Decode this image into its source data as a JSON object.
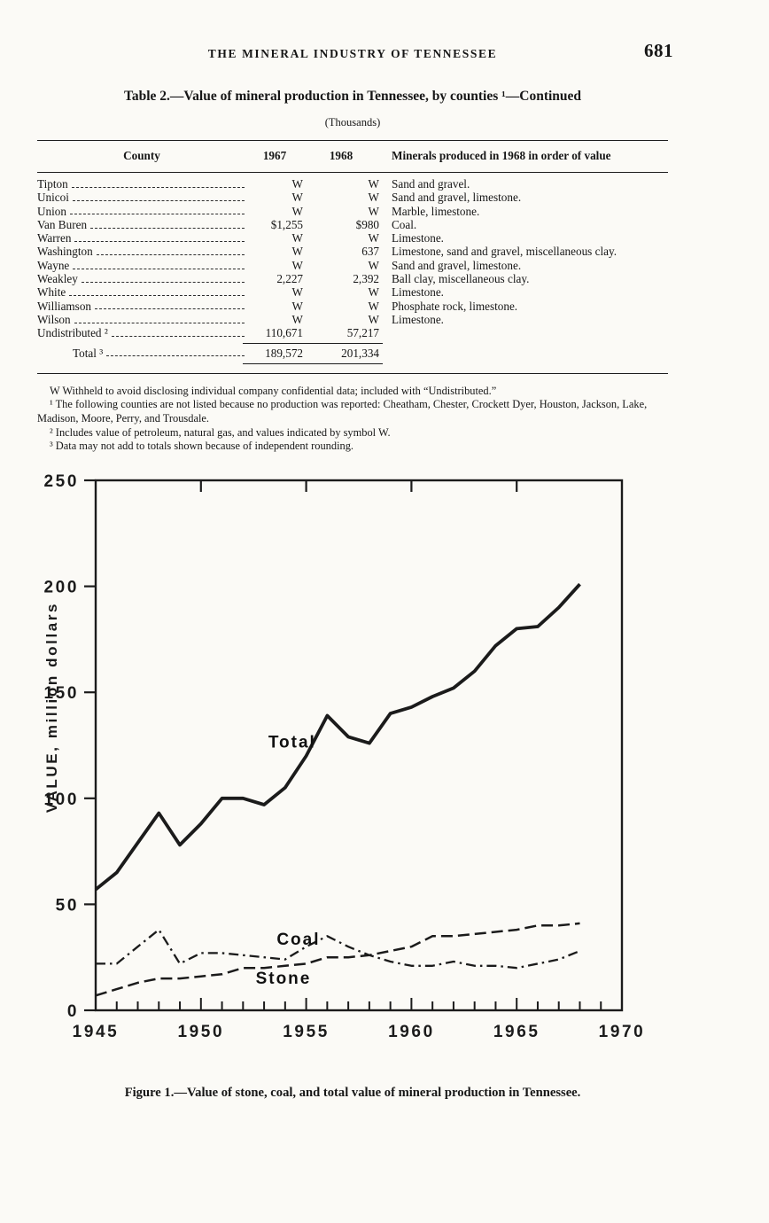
{
  "header": {
    "running_title": "THE MINERAL INDUSTRY OF TENNESSEE",
    "page_number": "681"
  },
  "table": {
    "title": "Table 2.—Value of mineral production in Tennessee, by counties ¹—Continued",
    "unit_note": "(Thousands)",
    "columns": [
      "County",
      "1967",
      "1968",
      "Minerals produced in 1968 in order of value"
    ],
    "rows": [
      {
        "county": "Tipton",
        "v1967": "W",
        "v1968": "W",
        "minerals": "Sand and gravel."
      },
      {
        "county": "Unicoi",
        "v1967": "W",
        "v1968": "W",
        "minerals": "Sand and gravel, limestone."
      },
      {
        "county": "Union",
        "v1967": "W",
        "v1968": "W",
        "minerals": "Marble, limestone."
      },
      {
        "county": "Van Buren",
        "v1967": "$1,255",
        "v1968": "$980",
        "minerals": "Coal."
      },
      {
        "county": "Warren",
        "v1967": "W",
        "v1968": "W",
        "minerals": "Limestone."
      },
      {
        "county": "Washington",
        "v1967": "W",
        "v1968": "637",
        "minerals": "Limestone, sand and gravel, miscellaneous clay."
      },
      {
        "county": "Wayne",
        "v1967": "W",
        "v1968": "W",
        "minerals": "Sand and gravel, limestone."
      },
      {
        "county": "Weakley",
        "v1967": "2,227",
        "v1968": "2,392",
        "minerals": "Ball clay, miscellaneous clay."
      },
      {
        "county": "White",
        "v1967": "W",
        "v1968": "W",
        "minerals": "Limestone."
      },
      {
        "county": "Williamson",
        "v1967": "W",
        "v1968": "W",
        "minerals": "Phosphate rock, limestone."
      },
      {
        "county": "Wilson",
        "v1967": "W",
        "v1968": "W",
        "minerals": "Limestone."
      }
    ],
    "undistributed_row": {
      "county": "Undistributed ²",
      "v1967": "110,671",
      "v1968": "57,217"
    },
    "total_row": {
      "county": "Total ³",
      "v1967": "189,572",
      "v1968": "201,334"
    }
  },
  "footnotes": [
    "W Withheld to avoid disclosing individual company confidential data; included with “Undistributed.”",
    "¹ The following counties are not listed because no production was reported: Cheatham, Chester, Crockett Dyer, Houston, Jackson, Lake, Madison, Moore, Perry, and Trousdale.",
    "² Includes value of petroleum, natural gas, and values indicated by symbol W.",
    "³ Data may not add to totals shown because of independent rounding."
  ],
  "chart_data": {
    "type": "line",
    "title": "",
    "xlabel": "",
    "ylabel": "VALUE, million dollars",
    "xlim": [
      1945,
      1970
    ],
    "ylim": [
      0,
      250
    ],
    "x_ticks_labeled": [
      1945,
      1950,
      1955,
      1960,
      1965,
      1970
    ],
    "y_ticks": [
      0,
      50,
      100,
      150,
      200,
      250
    ],
    "grid": false,
    "x": [
      1945,
      1946,
      1947,
      1948,
      1949,
      1950,
      1951,
      1952,
      1953,
      1954,
      1955,
      1956,
      1957,
      1958,
      1959,
      1960,
      1961,
      1962,
      1963,
      1964,
      1965,
      1966,
      1967,
      1968
    ],
    "series": [
      {
        "name": "Total",
        "style": "solid",
        "values": [
          57,
          65,
          79,
          93,
          78,
          88,
          100,
          100,
          97,
          105,
          120,
          139,
          129,
          126,
          140,
          143,
          148,
          152,
          160,
          172,
          180,
          181,
          190,
          201
        ]
      },
      {
        "name": "Coal",
        "style": "dashdot",
        "values": [
          22,
          22,
          30,
          38,
          22,
          27,
          27,
          26,
          25,
          24,
          30,
          35,
          30,
          26,
          23,
          21,
          21,
          23,
          21,
          21,
          20,
          22,
          24,
          28
        ]
      },
      {
        "name": "Stone",
        "style": "dashed",
        "values": [
          7,
          10,
          13,
          15,
          15,
          16,
          17,
          20,
          20,
          21,
          22,
          25,
          25,
          26,
          28,
          30,
          35,
          35,
          36,
          37,
          38,
          40,
          40,
          41
        ]
      }
    ],
    "annotations": [
      {
        "text": "Total",
        "x": 1953.2,
        "y": 124
      },
      {
        "text": "Coal",
        "x": 1953.6,
        "y": 31
      },
      {
        "text": "Stone",
        "x": 1952.6,
        "y": 12.5
      }
    ]
  },
  "figure": {
    "caption": "Figure 1.—Value of stone, coal, and total value of mineral production in Tennessee."
  }
}
